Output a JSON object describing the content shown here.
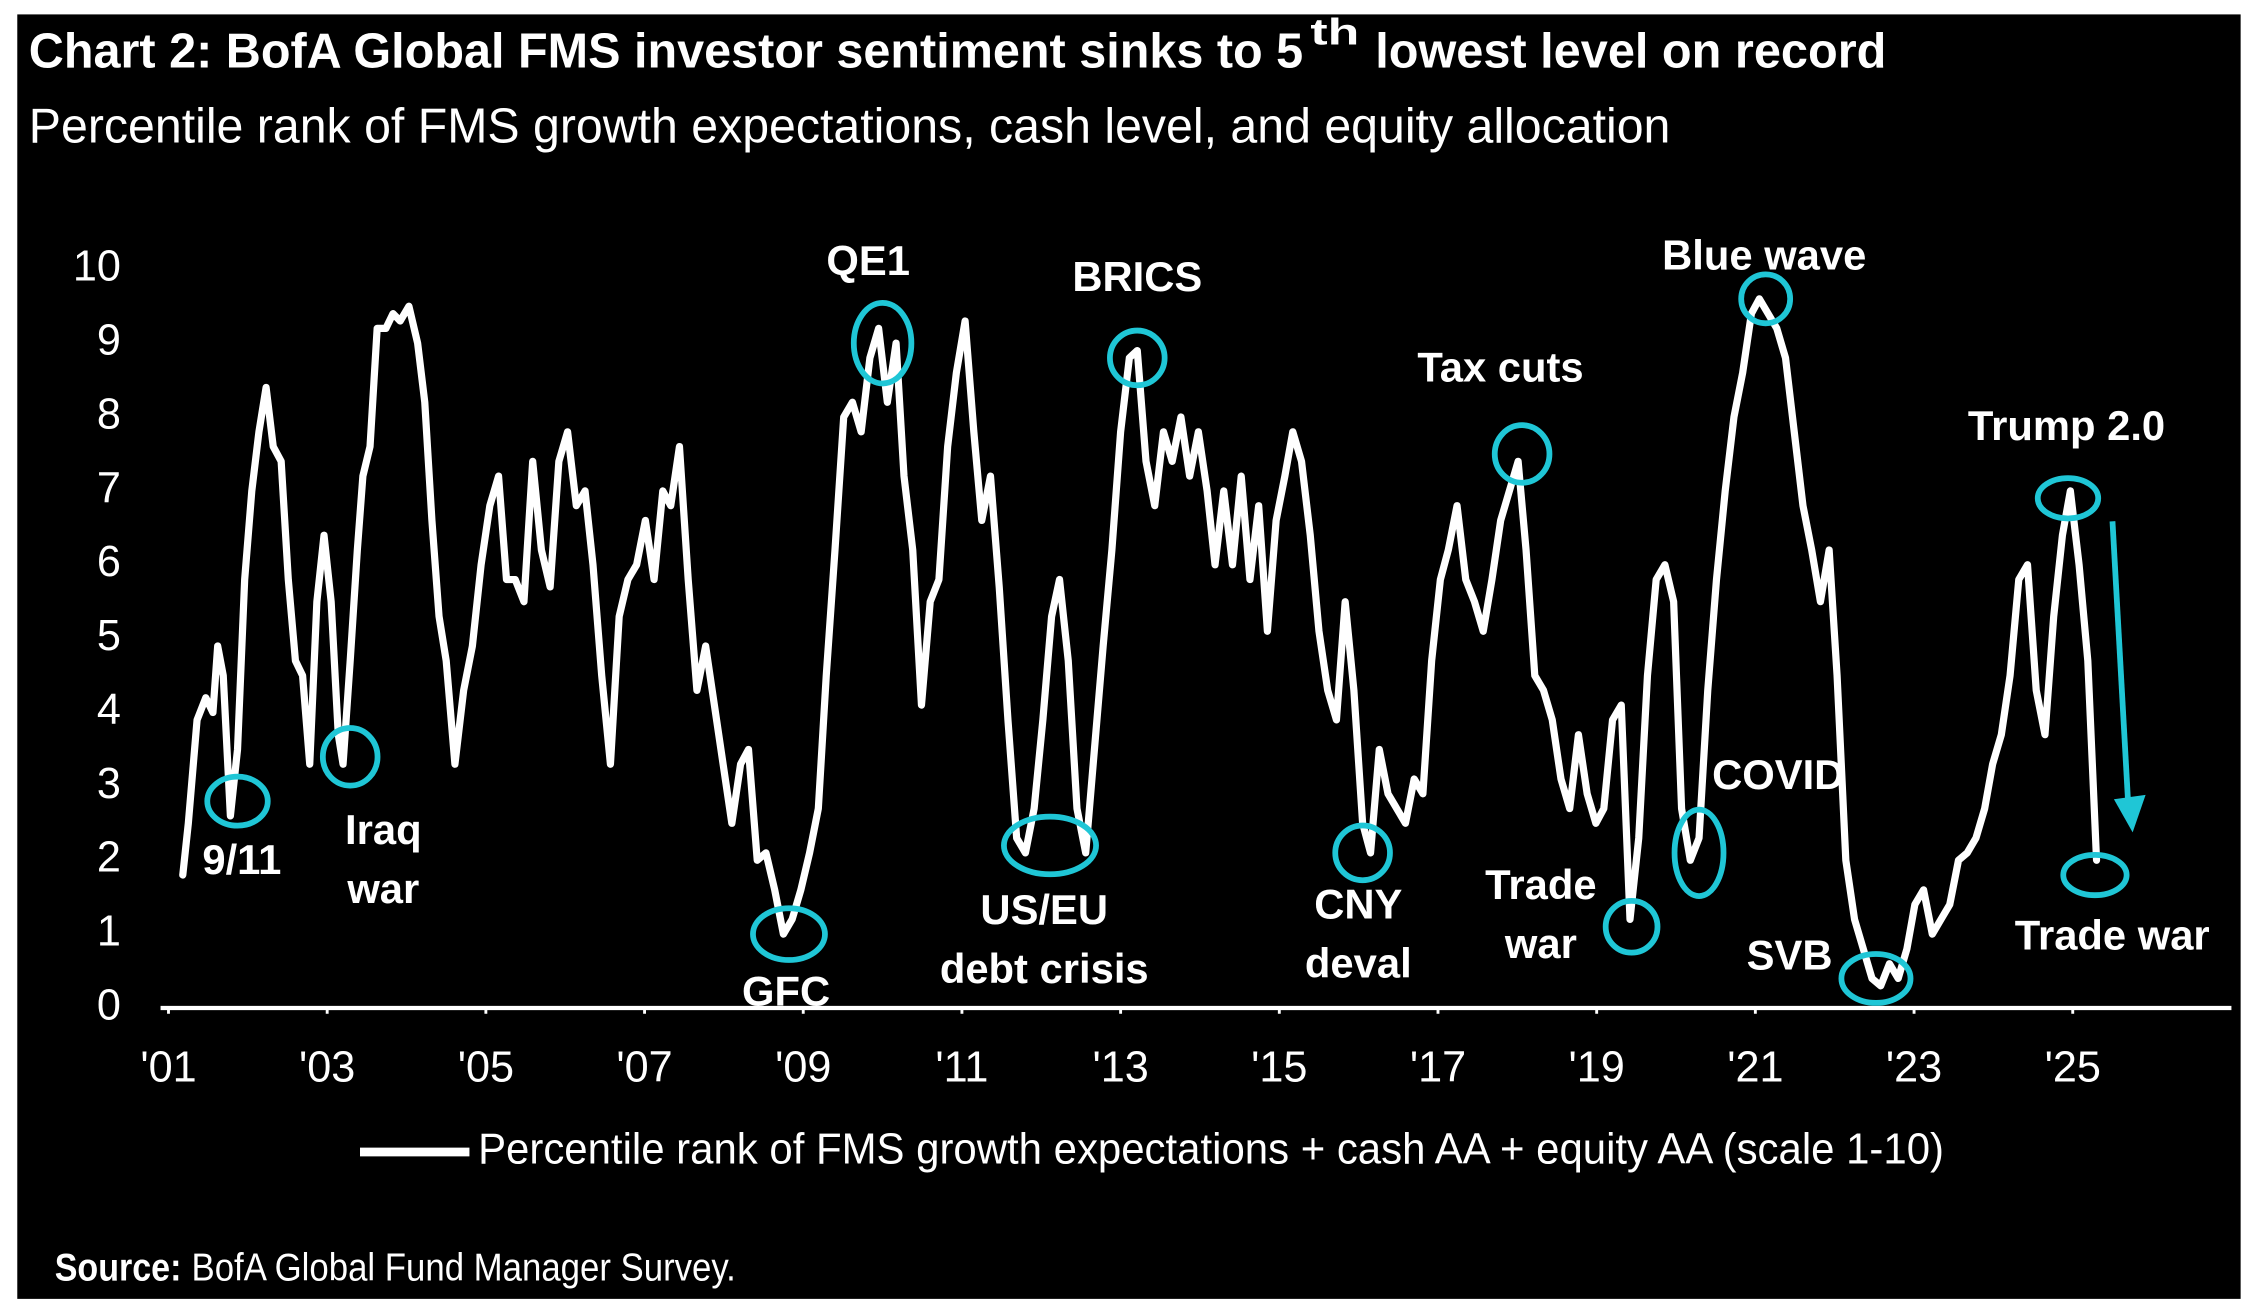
{
  "chart_data": {
    "type": "line",
    "title": [
      "Chart 2: BofA Global FMS investor sentiment sinks to 5",
      "th",
      "lowest level on record"
    ],
    "subtitle": "Percentile rank of FMS growth expectations, cash level, and equity allocation",
    "source": [
      "Source:",
      "BofA Global Fund Manager Survey."
    ],
    "xlim": [
      2000.9,
      2027
    ],
    "ylim": [
      0,
      10
    ],
    "xticks": [
      {
        "value": 2001,
        "label": "'01"
      },
      {
        "value": 2003,
        "label": "'03"
      },
      {
        "value": 2005,
        "label": "'05"
      },
      {
        "value": 2007,
        "label": "'07"
      },
      {
        "value": 2009,
        "label": "'09"
      },
      {
        "value": 2011,
        "label": "'11"
      },
      {
        "value": 2013,
        "label": "'13"
      },
      {
        "value": 2015,
        "label": "'15"
      },
      {
        "value": 2017,
        "label": "'17"
      },
      {
        "value": 2019,
        "label": "'19"
      },
      {
        "value": 2021,
        "label": "'21"
      },
      {
        "value": 2023,
        "label": "'23"
      },
      {
        "value": 2025,
        "label": "'25"
      }
    ],
    "yticks": [
      0,
      1,
      2,
      3,
      4,
      5,
      6,
      7,
      8,
      9,
      10
    ],
    "grid": false,
    "legend": "bottom",
    "annotation_color": "#1fc6d6",
    "x": [
      2001.18,
      2001.25,
      2001.36,
      2001.47,
      2001.56,
      2001.62,
      2001.69,
      2001.78,
      2001.87,
      2001.96,
      2002.05,
      2002.14,
      2002.23,
      2002.32,
      2002.42,
      2002.51,
      2002.6,
      2002.69,
      2002.78,
      2002.87,
      2002.96,
      2003.05,
      2003.14,
      2003.2,
      2003.29,
      2003.38,
      2003.45,
      2003.54,
      2003.63,
      2003.74,
      2003.83,
      2003.92,
      2004.03,
      2004.14,
      2004.23,
      2004.32,
      2004.41,
      2004.5,
      2004.61,
      2004.72,
      2004.83,
      2004.94,
      2005.05,
      2005.16,
      2005.26,
      2005.37,
      2005.48,
      2005.59,
      2005.7,
      2005.81,
      2005.92,
      2006.03,
      2006.14,
      2006.25,
      2006.35,
      2006.46,
      2006.57,
      2006.68,
      2006.79,
      2006.9,
      2007.01,
      2007.12,
      2007.23,
      2007.33,
      2007.44,
      2007.55,
      2007.66,
      2007.77,
      2007.88,
      2007.99,
      2008.1,
      2008.21,
      2008.31,
      2008.42,
      2008.53,
      2008.64,
      2008.75,
      2008.86,
      2008.97,
      2009.08,
      2009.19,
      2009.29,
      2009.4,
      2009.51,
      2009.62,
      2009.73,
      2009.84,
      2009.95,
      2010.06,
      2010.17,
      2010.27,
      2010.38,
      2010.49,
      2010.6,
      2010.71,
      2010.82,
      2010.93,
      2011.04,
      2011.15,
      2011.25,
      2011.36,
      2011.47,
      2011.58,
      2011.69,
      2011.8,
      2011.91,
      2012.02,
      2012.13,
      2012.23,
      2012.34,
      2012.45,
      2012.56,
      2012.67,
      2012.78,
      2012.89,
      2013.0,
      2013.11,
      2013.21,
      2013.32,
      2013.43,
      2013.54,
      2013.65,
      2013.76,
      2013.87,
      2013.98,
      2014.09,
      2014.19,
      2014.3,
      2014.41,
      2014.52,
      2014.63,
      2014.74,
      2014.85,
      2014.96,
      2015.07,
      2015.17,
      2015.28,
      2015.39,
      2015.5,
      2015.61,
      2015.72,
      2015.83,
      2015.94,
      2016.05,
      2016.15,
      2016.26,
      2016.37,
      2016.48,
      2016.59,
      2016.7,
      2016.81,
      2016.92,
      2017.03,
      2017.13,
      2017.24,
      2017.35,
      2017.46,
      2017.57,
      2017.68,
      2017.79,
      2017.9,
      2018.01,
      2018.11,
      2018.22,
      2018.33,
      2018.44,
      2018.55,
      2018.66,
      2018.77,
      2018.88,
      2018.99,
      2019.09,
      2019.2,
      2019.31,
      2019.42,
      2019.53,
      2019.64,
      2019.75,
      2019.86,
      2019.97,
      2020.07,
      2020.18,
      2020.29,
      2020.4,
      2020.51,
      2020.62,
      2020.73,
      2020.84,
      2020.95,
      2021.05,
      2021.16,
      2021.27,
      2021.38,
      2021.49,
      2021.6,
      2021.71,
      2021.82,
      2021.93,
      2022.03,
      2022.14,
      2022.25,
      2022.36,
      2022.47,
      2022.58,
      2022.69,
      2022.8,
      2022.91,
      2023.01,
      2023.12,
      2023.23,
      2023.34,
      2023.45,
      2023.56,
      2023.67,
      2023.78,
      2023.89,
      2023.99,
      2024.1,
      2024.21,
      2024.32,
      2024.43,
      2024.54,
      2024.65,
      2024.76,
      2024.87,
      2024.97,
      2025.08,
      2025.19,
      2025.3
    ],
    "series": [
      {
        "name": "Percentile rank of FMS growth expectations + cash AA + equity AA (scale 1-10)",
        "color": "#ffffff",
        "values": [
          1.8,
          2.5,
          3.9,
          4.2,
          4.0,
          4.9,
          4.5,
          2.6,
          3.5,
          5.8,
          7.0,
          7.8,
          8.4,
          7.6,
          7.4,
          5.8,
          4.7,
          4.5,
          3.3,
          5.5,
          6.4,
          5.5,
          3.7,
          3.3,
          4.7,
          6.2,
          7.2,
          7.6,
          9.2,
          9.2,
          9.4,
          9.3,
          9.5,
          9.0,
          8.2,
          6.6,
          5.3,
          4.7,
          3.3,
          4.3,
          4.9,
          6.0,
          6.8,
          7.2,
          5.8,
          5.8,
          5.5,
          7.4,
          6.2,
          5.7,
          7.4,
          7.8,
          6.8,
          7.0,
          6.0,
          4.5,
          3.3,
          5.3,
          5.8,
          6.0,
          6.6,
          5.8,
          7.0,
          6.8,
          7.6,
          5.8,
          4.3,
          4.9,
          4.1,
          3.3,
          2.5,
          3.3,
          3.5,
          2.0,
          2.1,
          1.6,
          1.0,
          1.2,
          1.6,
          2.1,
          2.7,
          4.5,
          6.2,
          8.0,
          8.2,
          7.8,
          8.8,
          9.2,
          8.2,
          9.0,
          7.2,
          6.2,
          4.1,
          5.5,
          5.8,
          7.6,
          8.6,
          9.3,
          7.8,
          6.6,
          7.2,
          5.7,
          3.9,
          2.3,
          2.1,
          2.7,
          3.9,
          5.3,
          5.8,
          4.7,
          2.7,
          2.1,
          3.5,
          4.9,
          6.2,
          7.8,
          8.8,
          8.9,
          7.4,
          6.8,
          7.8,
          7.4,
          8.0,
          7.2,
          7.8,
          7.0,
          6.0,
          7.0,
          6.0,
          7.2,
          5.8,
          6.8,
          5.1,
          6.6,
          7.2,
          7.8,
          7.4,
          6.4,
          5.1,
          4.3,
          3.9,
          5.5,
          4.3,
          2.5,
          2.1,
          3.5,
          2.9,
          2.7,
          2.5,
          3.1,
          2.9,
          4.7,
          5.8,
          6.2,
          6.8,
          5.8,
          5.5,
          5.1,
          5.8,
          6.6,
          7.0,
          7.4,
          6.2,
          4.5,
          4.3,
          3.9,
          3.1,
          2.7,
          3.7,
          2.9,
          2.5,
          2.7,
          3.9,
          4.1,
          1.2,
          2.3,
          4.5,
          5.8,
          6.0,
          5.5,
          2.7,
          2.0,
          2.3,
          4.3,
          5.8,
          7.0,
          8.0,
          8.6,
          9.4,
          9.6,
          9.4,
          9.2,
          8.8,
          7.8,
          6.8,
          6.2,
          5.5,
          6.2,
          4.5,
          2.0,
          1.2,
          0.8,
          0.4,
          0.3,
          0.6,
          0.4,
          0.8,
          1.4,
          1.6,
          1.0,
          1.2,
          1.4,
          2.0,
          2.1,
          2.3,
          2.7,
          3.3,
          3.7,
          4.5,
          5.8,
          6.0,
          4.3,
          3.7,
          5.3,
          6.4,
          7.0,
          6.0,
          4.7,
          2.0
        ]
      }
    ],
    "annotations": [
      {
        "lines": [
          "9/11"
        ],
        "x": 2001.87,
        "y": 2.8
      },
      {
        "lines": [
          "Iraq",
          "war"
        ],
        "x": 2003.29,
        "y": 3.4
      },
      {
        "lines": [
          "GFC"
        ],
        "x": 2008.82,
        "y": 1.0
      },
      {
        "lines": [
          "QE1"
        ],
        "x": 2010.0,
        "y": 9.0
      },
      {
        "lines": [
          "US/EU",
          "debt crisis"
        ],
        "x": 2012.11,
        "y": 2.2
      },
      {
        "lines": [
          "BRICS"
        ],
        "x": 2013.21,
        "y": 8.8
      },
      {
        "lines": [
          "CNY",
          "deval"
        ],
        "x": 2016.05,
        "y": 2.1
      },
      {
        "lines": [
          "Tax cuts"
        ],
        "x": 2018.06,
        "y": 7.5
      },
      {
        "lines": [
          "Trade",
          "war"
        ],
        "x": 2019.44,
        "y": 1.1
      },
      {
        "lines": [
          "COVID"
        ],
        "x": 2020.29,
        "y": 2.1
      },
      {
        "lines": [
          "Blue wave"
        ],
        "x": 2021.13,
        "y": 9.6
      },
      {
        "lines": [
          "SVB"
        ],
        "x": 2022.52,
        "y": 0.4
      },
      {
        "lines": [
          "Trump 2.0"
        ],
        "x": 2024.94,
        "y": 6.9
      },
      {
        "lines": [
          "Trade war"
        ],
        "x": 2025.28,
        "y": 1.8
      }
    ]
  }
}
